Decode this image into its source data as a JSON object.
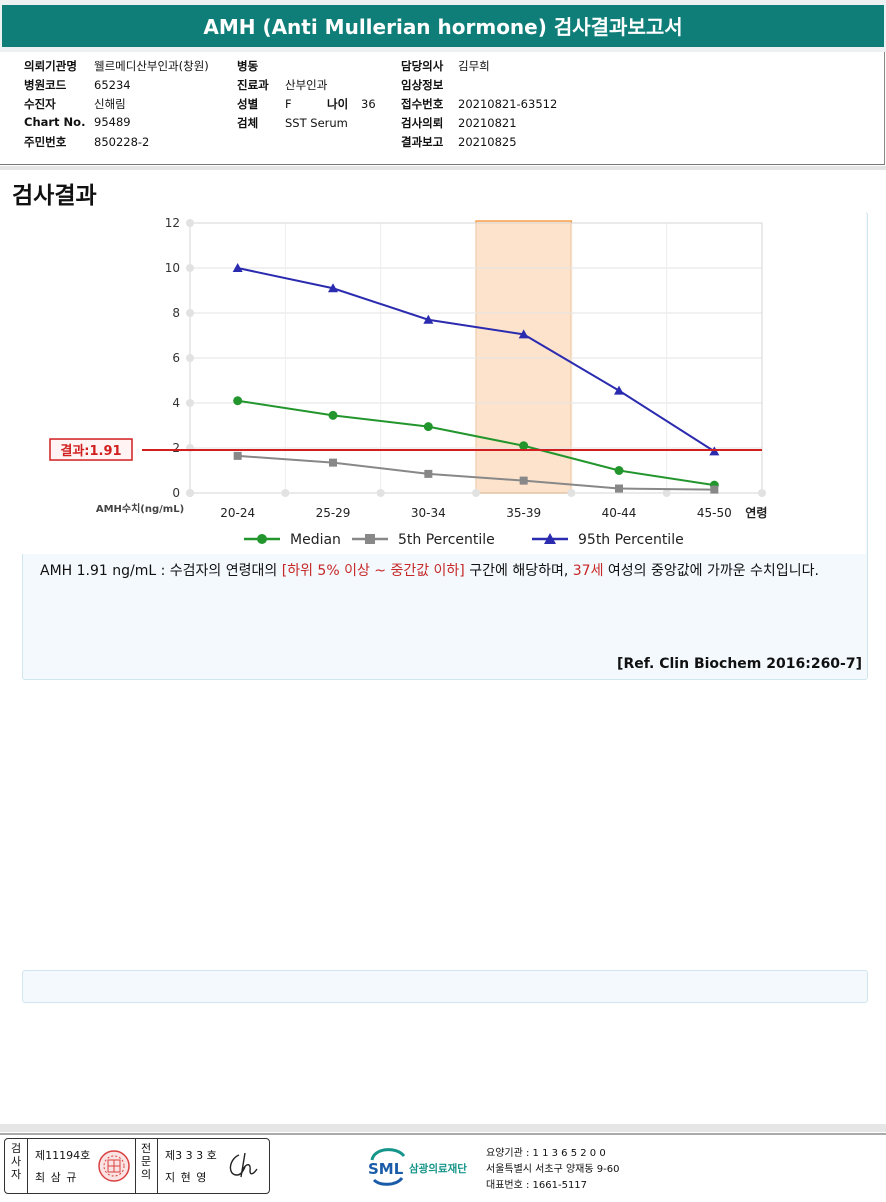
{
  "report": {
    "title": "AMH (Anti Mullerian hormone) 검사결과보고서",
    "section_title": "검사결과"
  },
  "patient_info": {
    "institution_label": "의뢰기관명",
    "institution": "웰르메디산부인과(창원)",
    "hospital_code_label": "병원코드",
    "hospital_code": "65234",
    "patient_label": "수진자",
    "patient": "신해림",
    "chart_label": "Chart No.",
    "chart_no": "95489",
    "id_label": "주민번호",
    "id_no": "850228-2",
    "ward_label": "병동",
    "ward": "",
    "dept_label": "진료과",
    "dept": "산부인과",
    "sex_label": "성별",
    "sex": "F",
    "age_label": "나이",
    "age": "36",
    "specimen_label": "검체",
    "specimen": "SST Serum",
    "doctor_label": "담당의사",
    "doctor": "김무희",
    "clinical_label": "임상정보",
    "clinical": "",
    "receipt_label": "접수번호",
    "receipt_no": "20210821-63512",
    "request_label": "검사의뢰",
    "request_date": "20210821",
    "report_label": "결과보고",
    "report_date": "20210825"
  },
  "chart_data": {
    "type": "line",
    "categories": [
      "20-24",
      "25-29",
      "30-34",
      "35-39",
      "40-44",
      "45-50"
    ],
    "x_suffix_label": "연령",
    "y_axis_label": "AMH수치(ng/mL)",
    "ylim": [
      0,
      12
    ],
    "yticks": [
      0,
      2,
      4,
      6,
      8,
      10,
      12
    ],
    "grid": true,
    "highlight_category": "35-39",
    "highlight_color": "#f6a04d",
    "result_line": {
      "value": 1.91,
      "label": "결과:1.91",
      "color": "#d11f1f"
    },
    "series": [
      {
        "name": "Median",
        "color": "#22962c",
        "marker": "circle",
        "values": [
          4.1,
          3.45,
          2.95,
          2.1,
          1.0,
          0.35
        ]
      },
      {
        "name": "5th Percentile",
        "color": "#888888",
        "marker": "square",
        "values": [
          1.65,
          1.35,
          0.85,
          0.55,
          0.2,
          0.15
        ]
      },
      {
        "name": "95th Percentile",
        "color": "#2b2bb0",
        "marker": "triangle",
        "values": [
          10.0,
          9.1,
          7.7,
          7.05,
          4.55,
          1.85
        ]
      }
    ],
    "legend_position": "bottom"
  },
  "comment": {
    "part1": "AMH  1.91 ng/mL : 수검자의 연령대의 ",
    "range": "[하위 5% 이상 ~ 중간값 이하]",
    "part2": "  구간에 해당하며, ",
    "age": "37세",
    "part3": " 여성의 중앙값에 가까운 수치입니다."
  },
  "reference": "[Ref. Clin Biochem 2016:260-7]",
  "footer": {
    "inspector_label": "검사자",
    "inspector_no": "제11194호",
    "inspector_name": "최 삼 규",
    "specialist_label": "전문의",
    "specialist_no": "제3 3 3 호",
    "specialist_name": "지 현 영",
    "org_abbr": "SML",
    "org_name": "삼광의료재단",
    "institution_code": "요양기관 : 1 1 3 6 5 2 0 0",
    "address": "서울특별시 서초구 양재동 9-60",
    "phone": "대표번호 : 1661-5117"
  }
}
